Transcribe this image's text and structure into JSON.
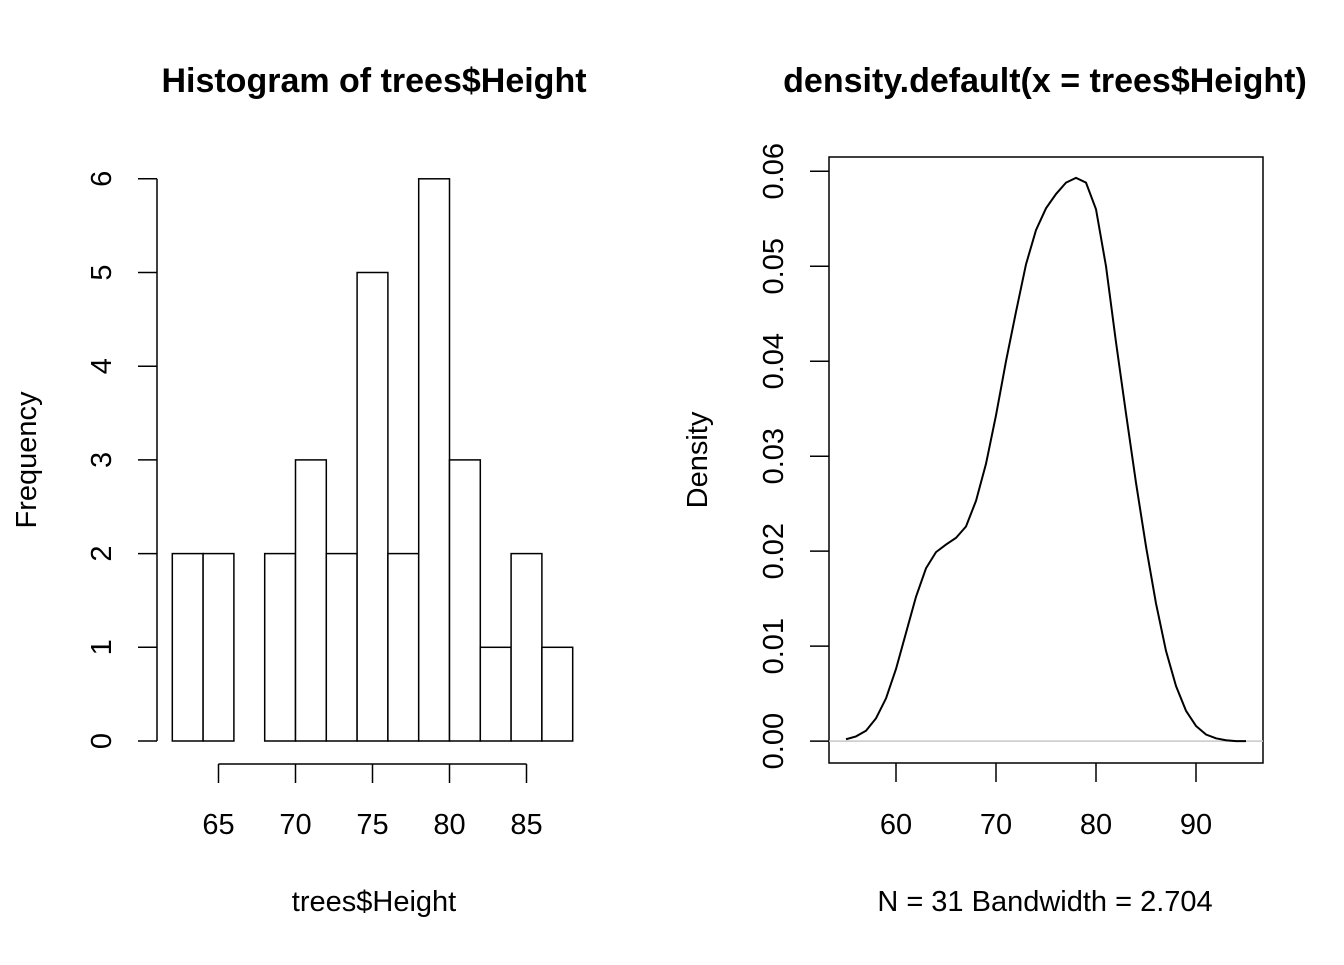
{
  "chart_data": [
    {
      "type": "bar",
      "title": "Histogram of trees$Height",
      "xlabel": "trees$Height",
      "ylabel": "Frequency",
      "bin_edges": [
        62,
        64,
        66,
        68,
        70,
        72,
        74,
        76,
        78,
        80,
        82,
        84,
        86,
        88
      ],
      "values": [
        2,
        2,
        0,
        2,
        3,
        2,
        5,
        2,
        6,
        3,
        1,
        2,
        1
      ],
      "x_ticks": [
        65,
        70,
        75,
        80,
        85
      ],
      "y_ticks": [
        0,
        1,
        2,
        3,
        4,
        5,
        6
      ],
      "ylim": [
        0,
        6
      ],
      "grid": false
    },
    {
      "type": "line",
      "title": "density.default(x = trees$Height)",
      "xlabel": "N = 31   Bandwidth = 2.704",
      "ylabel": "Density",
      "x": [
        55,
        56,
        57,
        58,
        59,
        60,
        61,
        62,
        63,
        64,
        65,
        66,
        67,
        68,
        69,
        70,
        71,
        72,
        73,
        74,
        75,
        76,
        77,
        78,
        79,
        80,
        81,
        82,
        83,
        84,
        85,
        86,
        87,
        88,
        89,
        90,
        91,
        92,
        93,
        94,
        95
      ],
      "y": [
        0.0002,
        0.0005,
        0.0011,
        0.0024,
        0.0045,
        0.0076,
        0.0114,
        0.0152,
        0.0182,
        0.0199,
        0.0207,
        0.0214,
        0.0226,
        0.0253,
        0.0292,
        0.0343,
        0.04,
        0.0452,
        0.0502,
        0.0538,
        0.0561,
        0.0576,
        0.0588,
        0.0593,
        0.0588,
        0.056,
        0.05,
        0.042,
        0.0345,
        0.0272,
        0.0205,
        0.0145,
        0.0095,
        0.0058,
        0.0032,
        0.0016,
        0.0007,
        0.0003,
        0.0001,
        0.0,
        0.0
      ],
      "x_ticks": [
        60,
        70,
        80,
        90
      ],
      "y_ticks": [
        "0.00",
        "0.01",
        "0.02",
        "0.03",
        "0.04",
        "0.05",
        "0.06"
      ],
      "xlim": [
        53.3,
        96.7
      ],
      "ylim": [
        -0.0023,
        0.0615
      ],
      "baseline": 0,
      "baseline_color": "#c8c8c8",
      "grid": false
    }
  ]
}
